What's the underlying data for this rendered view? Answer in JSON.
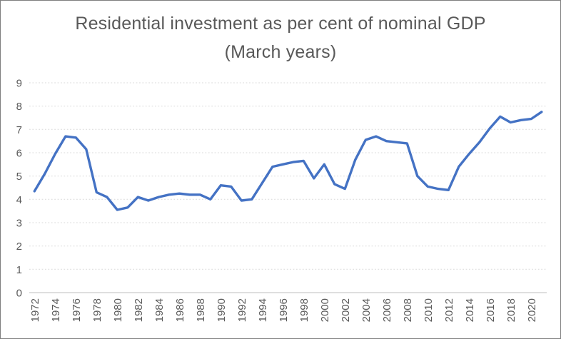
{
  "chart": {
    "title": "Residential investment as per cent of nominal GDP",
    "subtitle": "(March years)"
  },
  "chart_data": {
    "type": "line",
    "title": "Residential investment as per cent of nominal GDP",
    "subtitle": "(March years)",
    "x": [
      1972,
      1973,
      1974,
      1975,
      1976,
      1977,
      1978,
      1979,
      1980,
      1981,
      1982,
      1983,
      1984,
      1985,
      1986,
      1987,
      1988,
      1989,
      1990,
      1991,
      1992,
      1993,
      1994,
      1995,
      1996,
      1997,
      1998,
      1999,
      2000,
      2001,
      2002,
      2003,
      2004,
      2005,
      2006,
      2007,
      2008,
      2009,
      2010,
      2011,
      2012,
      2013,
      2014,
      2015,
      2016,
      2017,
      2018,
      2019,
      2020,
      2021
    ],
    "values": [
      4.35,
      5.1,
      5.95,
      6.7,
      6.65,
      6.15,
      4.3,
      4.1,
      3.55,
      3.65,
      4.1,
      3.95,
      4.1,
      4.2,
      4.25,
      4.2,
      4.2,
      4.0,
      4.6,
      4.55,
      3.95,
      4.0,
      4.7,
      5.4,
      5.5,
      5.6,
      5.65,
      4.9,
      5.5,
      4.65,
      4.45,
      5.7,
      6.55,
      6.7,
      6.5,
      6.45,
      6.4,
      5.0,
      4.55,
      4.45,
      4.4,
      5.4,
      5.95,
      6.45,
      7.05,
      7.55,
      7.3,
      7.4,
      7.45,
      7.75
    ],
    "x_tick_labels": [
      "1972",
      "1974",
      "1976",
      "1978",
      "1980",
      "1982",
      "1984",
      "1986",
      "1988",
      "1990",
      "1992",
      "1994",
      "1996",
      "1998",
      "2000",
      "2002",
      "2004",
      "2006",
      "2008",
      "2010",
      "2012",
      "2014",
      "2016",
      "2018",
      "2020"
    ],
    "y_ticks": [
      0,
      1,
      2,
      3,
      4,
      5,
      6,
      7,
      8,
      9
    ],
    "ylim": [
      0,
      9
    ],
    "grid": true,
    "legend": "none",
    "xlabel": "",
    "ylabel": "",
    "series_color": "#4472C4",
    "grid_color": "#D9D9D9",
    "axis_line_color": "#BFBFBF",
    "text_color": "#595959"
  }
}
